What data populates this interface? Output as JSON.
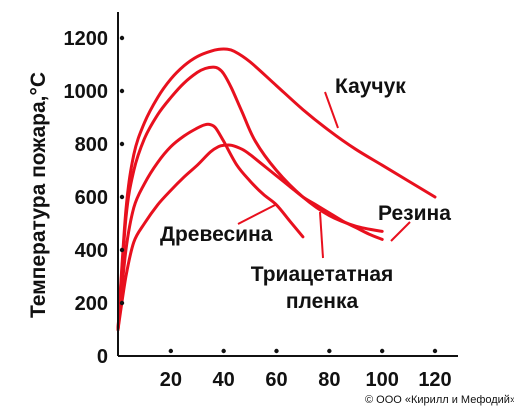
{
  "chart_data": {
    "type": "line",
    "ylabel": "Температура пожара,°С",
    "xlabel": "",
    "xlim": [
      0,
      125
    ],
    "ylim": [
      0,
      1250
    ],
    "x_ticks": [
      20,
      40,
      60,
      80,
      100,
      120
    ],
    "y_ticks": [
      0,
      200,
      400,
      600,
      800,
      1000,
      1200
    ],
    "series_color": "#e8101e",
    "axis_color": "#111111",
    "series": [
      {
        "name": "Каучук",
        "label_lines": [
          "Каучук"
        ],
        "x": [
          0,
          3,
          6,
          10,
          15,
          20,
          25,
          30,
          35,
          38,
          41,
          44,
          50,
          60,
          70,
          80,
          90,
          100,
          110,
          120
        ],
        "y": [
          100,
          550,
          760,
          880,
          975,
          1045,
          1095,
          1130,
          1150,
          1157,
          1158,
          1150,
          1110,
          1020,
          930,
          850,
          780,
          720,
          660,
          600
        ]
      },
      {
        "name": "Резина",
        "label_lines": [
          "Резина"
        ],
        "x": [
          0,
          3,
          6,
          10,
          15,
          20,
          25,
          30,
          33,
          36,
          38,
          40,
          43,
          47,
          52,
          60,
          70,
          80,
          90,
          100
        ],
        "y": [
          100,
          520,
          700,
          820,
          910,
          975,
          1030,
          1070,
          1085,
          1090,
          1085,
          1065,
          1010,
          920,
          810,
          700,
          600,
          530,
          490,
          470
        ]
      },
      {
        "name": "Древесина",
        "label_lines": [
          "Древесина"
        ],
        "x": [
          0,
          3,
          6,
          10,
          15,
          20,
          25,
          30,
          33,
          35,
          37,
          40,
          45,
          50,
          55,
          60,
          65,
          70
        ],
        "y": [
          100,
          400,
          560,
          650,
          730,
          790,
          830,
          860,
          873,
          873,
          860,
          810,
          720,
          660,
          610,
          570,
          510,
          450
        ]
      },
      {
        "name": "Триацетатная пленка",
        "label_lines": [
          "Триацетатная",
          "пленка"
        ],
        "x": [
          0,
          3,
          6,
          10,
          15,
          20,
          25,
          30,
          35,
          38,
          40,
          43,
          47,
          50,
          55,
          60,
          65,
          70,
          75,
          80,
          85,
          90,
          95,
          100
        ],
        "y": [
          100,
          300,
          430,
          500,
          570,
          625,
          675,
          720,
          770,
          790,
          795,
          795,
          780,
          760,
          720,
          680,
          640,
          600,
          570,
          540,
          510,
          485,
          460,
          440
        ]
      }
    ]
  },
  "credit": "© ООО «Кирилл и Мефодий»"
}
